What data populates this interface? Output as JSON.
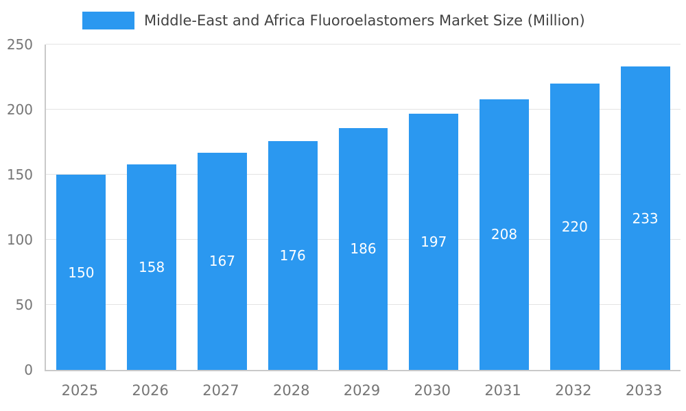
{
  "chart_data": {
    "type": "bar",
    "title": "Middle-East and Africa Fluoroelastomers Market Size (Million)",
    "categories": [
      "2025",
      "2026",
      "2027",
      "2028",
      "2029",
      "2030",
      "2031",
      "2032",
      "2033"
    ],
    "values": [
      150,
      158,
      167,
      176,
      186,
      197,
      208,
      220,
      233
    ],
    "xlabel": "",
    "ylabel": "",
    "ylim": [
      0,
      250
    ],
    "yticks": [
      0,
      50,
      100,
      150,
      200,
      250
    ],
    "grid": true,
    "legend_position": "top",
    "value_labels": "inside-center"
  },
  "colors": {
    "bar": "#2B98F0",
    "value_label": "#ffffff",
    "axis": "#c9c9c9",
    "grid": "#e3e3e3",
    "tick_text": "#757575",
    "title_text": "#424242"
  }
}
